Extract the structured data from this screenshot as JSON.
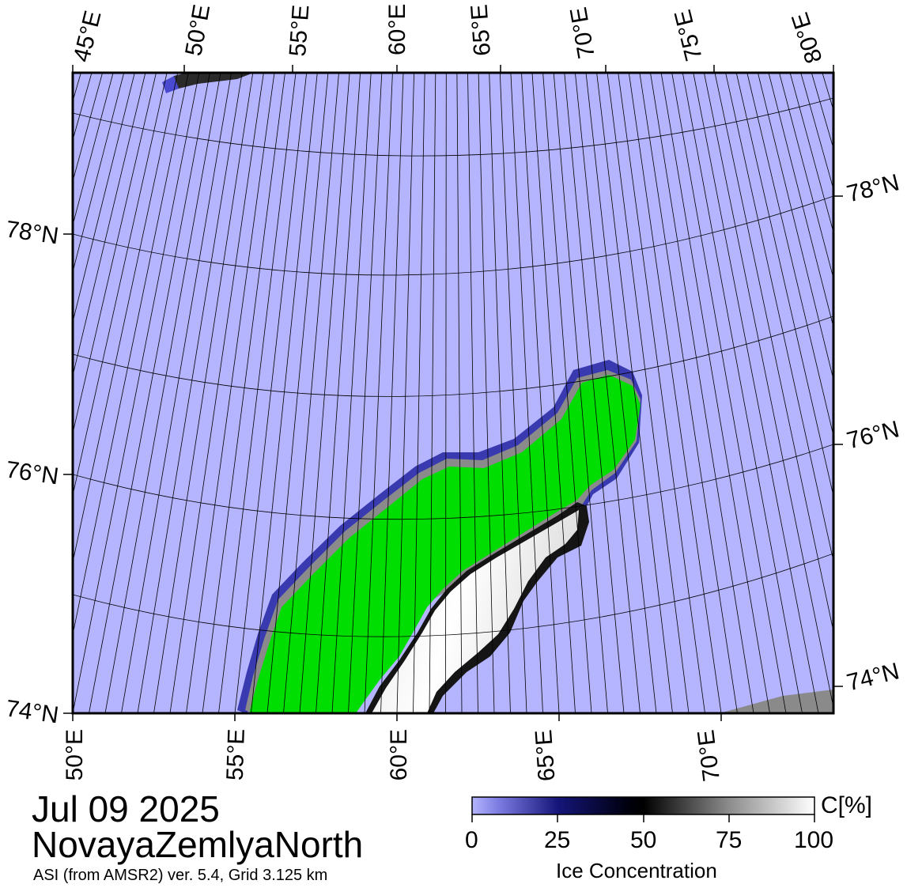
{
  "map": {
    "date": "Jul 09 2025",
    "region": "NovayaZemlyaNorth",
    "source": "ASI (from AMSR2) ver. 5.4,  Grid 3.125 km",
    "top_lon_labels": [
      "45°E",
      "50°E",
      "55°E",
      "60°E",
      "65°E",
      "70°E",
      "75°E",
      "80°E"
    ],
    "bottom_lon_labels": [
      "50°E",
      "55°E",
      "60°E",
      "65°E",
      "70°E"
    ],
    "left_lat_labels": [
      "78°N",
      "76°N",
      "74°N"
    ],
    "right_lat_labels": [
      "78°N",
      "76°N",
      "74°N"
    ],
    "colors": {
      "open_water": "#b4b4ff",
      "land": "#00dd00",
      "coast_mask": "#8a8a8a",
      "graticule": "#000000"
    }
  },
  "colorbar": {
    "title": "Ice Concentration",
    "unit": "C[%]",
    "tick_labels": [
      "0",
      "25",
      "50",
      "75",
      "100"
    ],
    "min": 0,
    "max": 100
  }
}
